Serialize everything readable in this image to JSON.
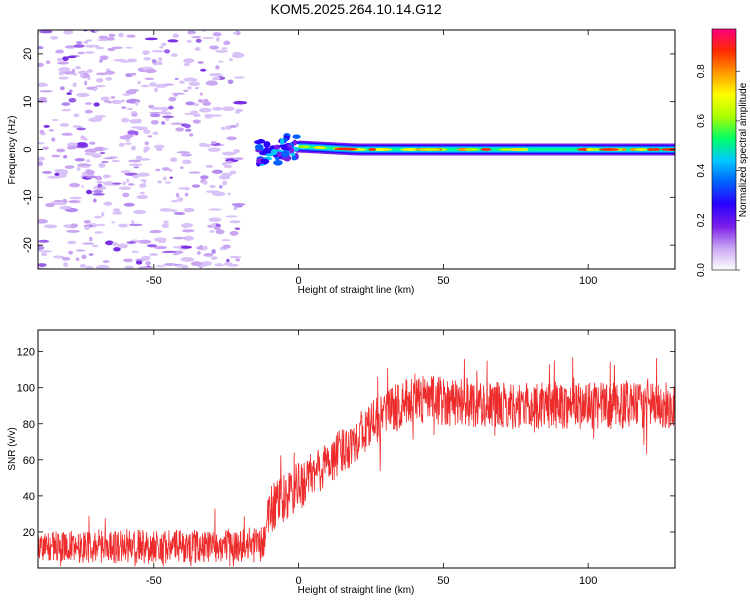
{
  "title": "KOM5.2025.264.10.14.G12",
  "chart_data": [
    {
      "type": "heatmap",
      "xlabel": "Height of straight line (km)",
      "ylabel": "Frequency (Hz)",
      "xlim": [
        -90,
        130
      ],
      "ylim": [
        -25,
        25
      ],
      "xticks": [
        "-50",
        "0",
        "50",
        "100"
      ],
      "xtick_values": [
        -50,
        0,
        50,
        100
      ],
      "yticks": [
        "20",
        "10",
        "0",
        "-10",
        "-20"
      ],
      "ytick_values": [
        20,
        10,
        0,
        -10,
        -20
      ],
      "colorbar": {
        "label": "Normalized spectral amplitude",
        "range": [
          0,
          0.97
        ],
        "ticks": [
          "0.0",
          "0.2",
          "0.4",
          "0.6",
          "0.8"
        ],
        "tick_values": [
          0,
          0.2,
          0.4,
          0.6,
          0.8
        ],
        "colors": [
          "#ffffff",
          "#c9a6f2",
          "#7a1ee8",
          "#2a00ff",
          "#0060ff",
          "#00c8ff",
          "#00ff66",
          "#aaff00",
          "#ffff00",
          "#ff9900",
          "#ff2a00",
          "#ff0080"
        ]
      },
      "features": {
        "noise_region_x": [
          -90,
          -12
        ],
        "transition_x": [
          -14,
          0
        ],
        "signal_band_x": [
          0,
          130
        ],
        "signal_frequency_hz": 0
      }
    },
    {
      "type": "line",
      "xlabel": "Height of straight line (km)",
      "ylabel": "SNR (v/v)",
      "xlim": [
        -90,
        130
      ],
      "ylim": [
        0,
        132
      ],
      "xticks": [
        "-50",
        "0",
        "50",
        "100"
      ],
      "xtick_values": [
        -50,
        0,
        50,
        100
      ],
      "yticks": [
        "120",
        "100",
        "80",
        "60",
        "40",
        "20"
      ],
      "ytick_values": [
        120,
        100,
        80,
        60,
        40,
        20
      ],
      "color": "#ee2b2b",
      "series_profile": {
        "x": [
          -90,
          -60,
          -30,
          -12,
          -11,
          -5,
          0,
          10,
          20,
          30,
          40,
          50,
          70,
          90,
          110,
          130
        ],
        "mean": [
          12,
          12,
          12,
          13,
          30,
          38,
          45,
          58,
          72,
          86,
          94,
          93,
          90,
          90,
          90,
          90
        ],
        "spread": [
          8,
          10,
          9,
          10,
          15,
          14,
          14,
          13,
          13,
          13,
          14,
          14,
          13,
          13,
          13,
          13
        ]
      }
    }
  ]
}
